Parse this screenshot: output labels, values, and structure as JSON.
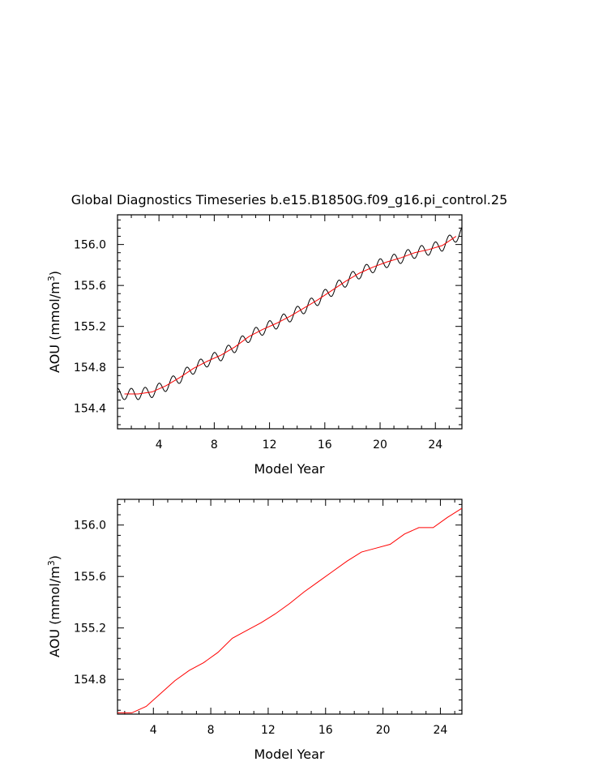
{
  "title": "Global Diagnostics Timeseries b.e15.B1850G.f09_g16.pi_control.25",
  "chart_data": [
    {
      "type": "line",
      "xlabel": "Model Year",
      "ylabel": "AOU (mmol/m",
      "ylabel_sup": "3",
      "ylabel_close": ")",
      "xlim": [
        1,
        25.92
      ],
      "ylim": [
        154.2,
        156.29
      ],
      "x_ticks": [
        4,
        8,
        12,
        16,
        20,
        24
      ],
      "x_tick_labels": [
        "4",
        "8",
        "12",
        "16",
        "20",
        "24"
      ],
      "y_ticks": [
        154.4,
        154.8,
        155.2,
        155.6,
        156.0
      ],
      "y_tick_labels": [
        "154.4",
        "154.8",
        "155.2",
        "155.6",
        "156.0"
      ],
      "grid": false,
      "series": [
        {
          "kind": "monthly",
          "color": "#000000",
          "base_x": [
            1.0,
            1.5,
            2.5,
            3.5,
            4.5,
            5.5,
            6.5,
            7.5,
            8.5,
            9.5,
            10.5,
            11.5,
            12.5,
            13.5,
            14.5,
            15.5,
            16.5,
            17.5,
            18.5,
            19.5,
            20.5,
            21.5,
            22.5,
            23.5,
            24.5,
            25.5,
            25.92
          ],
          "base_y": [
            154.54,
            154.54,
            154.54,
            154.56,
            154.62,
            154.7,
            154.79,
            154.86,
            154.92,
            155.0,
            155.1,
            155.17,
            155.23,
            155.3,
            155.38,
            155.46,
            155.55,
            155.64,
            155.72,
            155.78,
            155.83,
            155.87,
            155.92,
            155.95,
            155.99,
            156.08,
            156.12
          ],
          "cycle_amplitude": 0.055
        },
        {
          "kind": "annual",
          "color": "#ff0000",
          "x": [
            1.5,
            2.5,
            3.5,
            4.5,
            5.5,
            6.5,
            7.5,
            8.5,
            9.5,
            10.5,
            11.5,
            12.5,
            13.5,
            14.5,
            15.5,
            16.5,
            17.5,
            18.5,
            19.5,
            20.5,
            21.5,
            22.5,
            23.5,
            24.5,
            25.5
          ],
          "y": [
            154.54,
            154.54,
            154.56,
            154.62,
            154.7,
            154.79,
            154.86,
            154.92,
            155.0,
            155.1,
            155.17,
            155.23,
            155.3,
            155.38,
            155.46,
            155.55,
            155.64,
            155.72,
            155.78,
            155.83,
            155.87,
            155.92,
            155.95,
            155.99,
            156.08
          ]
        }
      ]
    },
    {
      "type": "line",
      "xlabel": "Model Year",
      "ylabel": "AOU (mmol/m",
      "ylabel_sup": "3",
      "ylabel_close": ")",
      "xlim": [
        1.5,
        25.5
      ],
      "ylim": [
        154.53,
        156.2
      ],
      "x_ticks": [
        4,
        8,
        12,
        16,
        20,
        24
      ],
      "x_tick_labels": [
        "4",
        "8",
        "12",
        "16",
        "20",
        "24"
      ],
      "y_ticks": [
        154.8,
        155.2,
        155.6,
        156.0
      ],
      "y_tick_labels": [
        "154.8",
        "155.2",
        "155.6",
        "156.0"
      ],
      "grid": false,
      "series": [
        {
          "kind": "annual",
          "color": "#ff0000",
          "x": [
            1.5,
            2.5,
            3.5,
            4.5,
            5.5,
            6.5,
            7.5,
            8.5,
            9.5,
            10.5,
            11.5,
            12.5,
            13.5,
            14.5,
            15.5,
            16.5,
            17.5,
            18.5,
            19.5,
            20.5,
            21.5,
            22.5,
            23.5,
            24.5,
            25.5
          ],
          "y": [
            154.54,
            154.54,
            154.59,
            154.69,
            154.79,
            154.87,
            154.93,
            155.01,
            155.12,
            155.18,
            155.24,
            155.31,
            155.39,
            155.48,
            155.56,
            155.64,
            155.72,
            155.79,
            155.82,
            155.85,
            155.93,
            155.98,
            155.98,
            156.06,
            156.13
          ]
        }
      ]
    }
  ]
}
